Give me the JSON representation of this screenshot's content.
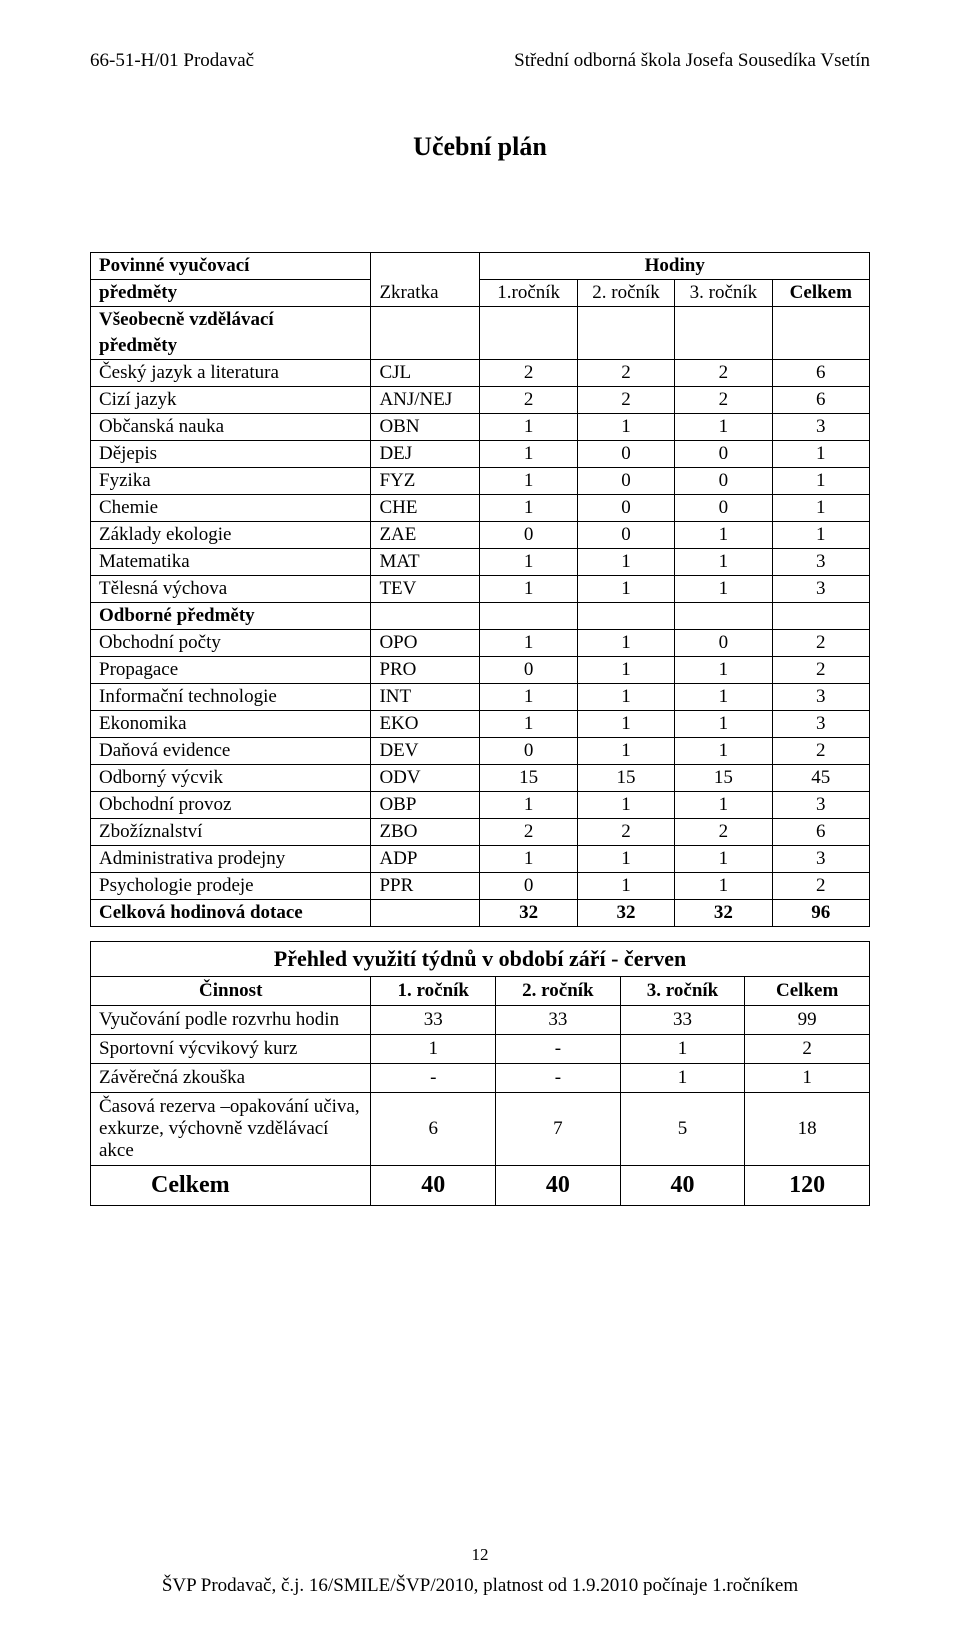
{
  "header": {
    "left": "66-51-H/01 Prodavač",
    "right": "Střední odborná škola Josefa Sousedíka Vsetín"
  },
  "title": "Učební plán",
  "plan": {
    "row1_label": "Povinné vyučovací",
    "row1_hodiny": "Hodiny",
    "row2_label": "předměty",
    "row2_zkratka": "Zkratka",
    "row2_c1": "1.ročník",
    "row2_c2": "2. ročník",
    "row2_c3": "3. ročník",
    "row2_sum": "Celkem",
    "section1": "Všeobecně vzdělávací",
    "section1b": "předměty",
    "rows1": [
      {
        "name": "Český jazyk a literatura",
        "abbr": "CJL",
        "v": [
          "2",
          "2",
          "2",
          "6"
        ]
      },
      {
        "name": "Cizí jazyk",
        "abbr": "ANJ/NEJ",
        "v": [
          "2",
          "2",
          "2",
          "6"
        ]
      },
      {
        "name": "Občanská nauka",
        "abbr": "OBN",
        "v": [
          "1",
          "1",
          "1",
          "3"
        ]
      },
      {
        "name": "Dějepis",
        "abbr": "DEJ",
        "v": [
          "1",
          "0",
          "0",
          "1"
        ]
      },
      {
        "name": "Fyzika",
        "abbr": "FYZ",
        "v": [
          "1",
          "0",
          "0",
          "1"
        ]
      },
      {
        "name": "Chemie",
        "abbr": "CHE",
        "v": [
          "1",
          "0",
          "0",
          "1"
        ]
      },
      {
        "name": "Základy ekologie",
        "abbr": "ZAE",
        "v": [
          "0",
          "0",
          "1",
          "1"
        ]
      },
      {
        "name": "Matematika",
        "abbr": "MAT",
        "v": [
          "1",
          "1",
          "1",
          "3"
        ]
      },
      {
        "name": "Tělesná výchova",
        "abbr": "TEV",
        "v": [
          "1",
          "1",
          "1",
          "3"
        ]
      }
    ],
    "section2": "Odborné předměty",
    "rows2": [
      {
        "name": "Obchodní počty",
        "abbr": "OPO",
        "v": [
          "1",
          "1",
          "0",
          "2"
        ]
      },
      {
        "name": "Propagace",
        "abbr": "PRO",
        "v": [
          "0",
          "1",
          "1",
          "2"
        ]
      },
      {
        "name": "Informační technologie",
        "abbr": "INT",
        "v": [
          "1",
          "1",
          "1",
          "3"
        ]
      },
      {
        "name": "Ekonomika",
        "abbr": "EKO",
        "v": [
          "1",
          "1",
          "1",
          "3"
        ]
      },
      {
        "name": "Daňová evidence",
        "abbr": "DEV",
        "v": [
          "0",
          "1",
          "1",
          "2"
        ]
      },
      {
        "name": "Odborný výcvik",
        "abbr": "ODV",
        "v": [
          "15",
          "15",
          "15",
          "45"
        ]
      },
      {
        "name": "Obchodní provoz",
        "abbr": "OBP",
        "v": [
          "1",
          "1",
          "1",
          "3"
        ]
      },
      {
        "name": "Zbožíznalství",
        "abbr": "ZBO",
        "v": [
          "2",
          "2",
          "2",
          "6"
        ]
      },
      {
        "name": "Administrativa prodejny",
        "abbr": "ADP",
        "v": [
          "1",
          "1",
          "1",
          "3"
        ]
      },
      {
        "name": "Psychologie prodeje",
        "abbr": "PPR",
        "v": [
          "0",
          "1",
          "1",
          "2"
        ]
      }
    ],
    "total_label": "Celková hodinová dotace",
    "total": [
      "32",
      "32",
      "32",
      "96"
    ]
  },
  "overview": {
    "title": "Přehled využití týdnů v období  září - červen",
    "head": {
      "act": "Činnost",
      "c1": "1. ročník",
      "c2": "2. ročník",
      "c3": "3. ročník",
      "sum": "Celkem"
    },
    "rows": [
      {
        "name": "Vyučování podle rozvrhu hodin",
        "v": [
          "33",
          "33",
          "33",
          "99"
        ]
      },
      {
        "name": "Sportovní výcvikový kurz",
        "v": [
          "1",
          "-",
          "1",
          "2"
        ]
      },
      {
        "name": "Závěrečná zkouška",
        "v": [
          "-",
          "-",
          "1",
          "1"
        ]
      },
      {
        "name": "Časová rezerva –opakování učiva, exkurze, výchovně vzdělávací akce",
        "v": [
          "6",
          "7",
          "5",
          "18"
        ]
      }
    ],
    "celkem_label": "Celkem",
    "celkem": [
      "40",
      "40",
      "40",
      "120"
    ]
  },
  "page_number": "12",
  "footer": "ŠVP Prodavač, č.j. 16/SMILE/ŠVP/2010, platnost od 1.9.2010 počínaje 1.ročníkem"
}
